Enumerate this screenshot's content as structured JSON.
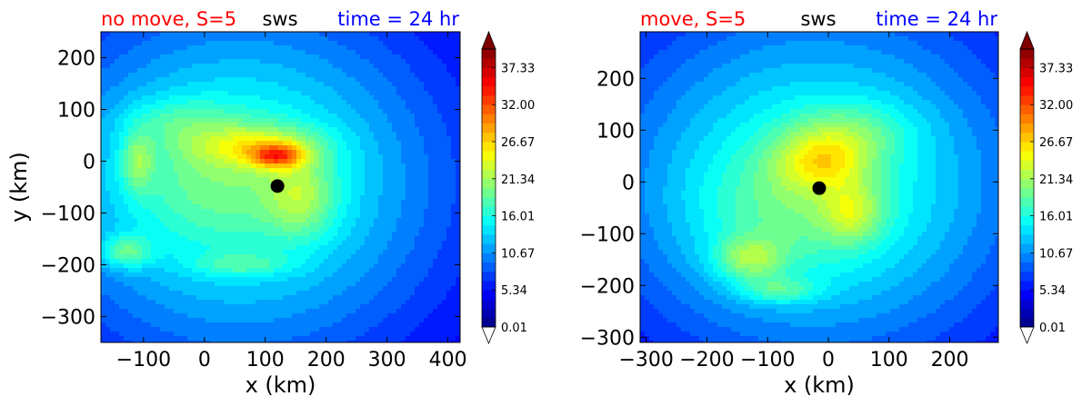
{
  "chart_data": [
    {
      "type": "heatmap",
      "title_left": "no move, S=5",
      "title_center": "sws",
      "title_right": "time = 24 hr",
      "title_left_color": "#ff0000",
      "title_center_color": "#000000",
      "title_right_color": "#0000ff",
      "xlabel": "x (km)",
      "ylabel": "y (km)",
      "xlim": [
        -170,
        420
      ],
      "ylim": [
        -350,
        250
      ],
      "xticks": [
        -100,
        0,
        100,
        200,
        300,
        400
      ],
      "xtick_labels": [
        "−100",
        "0",
        "100",
        "200",
        "300",
        "400"
      ],
      "yticks": [
        200,
        100,
        0,
        -100,
        -200,
        -300
      ],
      "ytick_labels": [
        "200",
        "100",
        "0",
        "−100",
        "−200",
        "−300"
      ],
      "center_marker": {
        "x": 120,
        "y": -48
      },
      "field": {
        "cx": 60,
        "cy": -40,
        "rx": 460,
        "ry": 470
      },
      "features": [
        {
          "x": 120,
          "y": 10,
          "sx": 30,
          "sy": 16,
          "v": 11
        },
        {
          "x": 85,
          "y": 30,
          "sx": 75,
          "sy": 28,
          "v": 7
        },
        {
          "x": 160,
          "y": -70,
          "sx": 40,
          "sy": 55,
          "v": 6
        },
        {
          "x": 10,
          "y": -30,
          "sx": 110,
          "sy": 90,
          "v": 3.5
        },
        {
          "x": -130,
          "y": -175,
          "sx": 30,
          "sy": 22,
          "v": 7
        },
        {
          "x": -110,
          "y": 0,
          "sx": 18,
          "sy": 40,
          "v": 6
        },
        {
          "x": 60,
          "y": -200,
          "sx": 55,
          "sy": 15,
          "v": 4
        },
        {
          "x": -50,
          "y": 80,
          "sx": 60,
          "sy": 30,
          "v": 3
        }
      ]
    },
    {
      "type": "heatmap",
      "title_left": "move, S=5",
      "title_center": "sws",
      "title_right": "time = 24 hr",
      "title_left_color": "#ff0000",
      "title_center_color": "#000000",
      "title_right_color": "#0000ff",
      "xlabel": "x (km)",
      "ylabel": "",
      "xlim": [
        -310,
        280
      ],
      "ylim": [
        -310,
        290
      ],
      "xticks": [
        -300,
        -200,
        -100,
        0,
        100,
        200
      ],
      "xtick_labels": [
        "−300",
        "−200",
        "−100",
        "0",
        "100",
        "200"
      ],
      "yticks": [
        200,
        100,
        0,
        -100,
        -200,
        -300
      ],
      "ytick_labels": [
        "200",
        "100",
        "0",
        "−100",
        "−200",
        "−300"
      ],
      "center_marker": {
        "x": -15,
        "y": -12
      },
      "field": {
        "cx": -20,
        "cy": 0,
        "rx": 470,
        "ry": 470
      },
      "features": [
        {
          "x": -10,
          "y": 40,
          "sx": 55,
          "sy": 40,
          "v": 8
        },
        {
          "x": 40,
          "y": -60,
          "sx": 35,
          "sy": 40,
          "v": 6
        },
        {
          "x": -130,
          "y": -150,
          "sx": 40,
          "sy": 30,
          "v": 7
        },
        {
          "x": -80,
          "y": -210,
          "sx": 45,
          "sy": 18,
          "v": 5
        },
        {
          "x": 40,
          "y": 100,
          "sx": 70,
          "sy": 40,
          "v": 4
        },
        {
          "x": -70,
          "y": -60,
          "sx": 110,
          "sy": 90,
          "v": 3.5
        }
      ]
    }
  ],
  "colorbar": {
    "vmin": 0.01,
    "vmax": 40,
    "tick_values": [
      0.01,
      5.34,
      10.67,
      16.01,
      21.34,
      26.67,
      32.0,
      37.33
    ],
    "tick_labels": [
      "0.01",
      "5.34",
      "10.67",
      "16.01",
      "21.34",
      "26.67",
      "32.00",
      "37.33"
    ],
    "colormap": "jet",
    "extend": "both"
  }
}
